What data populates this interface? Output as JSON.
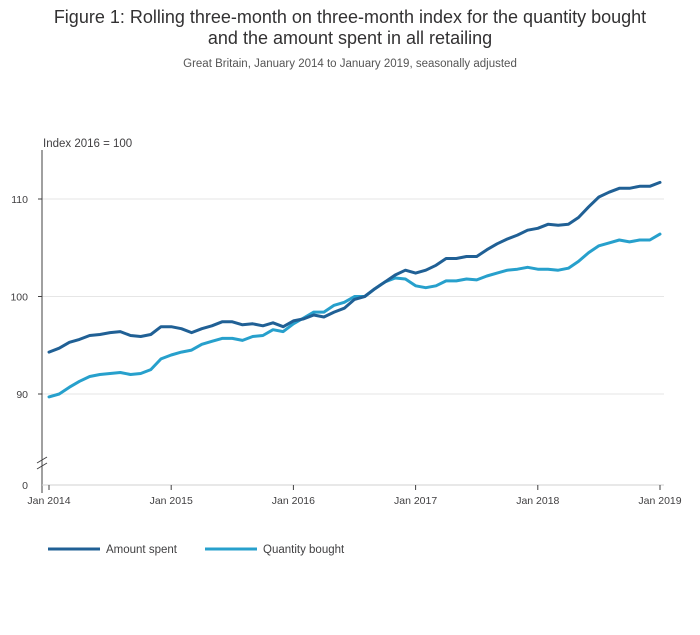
{
  "chart_data": {
    "type": "line",
    "title_lines": [
      "Figure 1: Rolling three-month on three-month index for the quantity bought",
      "and the amount spent in all retailing"
    ],
    "subtitle": "Great Britain, January 2014 to January 2019, seasonally adjusted",
    "ylabel": "Index 2016 = 100",
    "ylim": [
      85,
      115
    ],
    "yaxis_zero_label": "0",
    "yticks": [
      {
        "value": 90,
        "label": "90"
      },
      {
        "value": 100,
        "label": "100"
      },
      {
        "value": 110,
        "label": "110"
      }
    ],
    "xticks": [
      {
        "index": 0,
        "label": "Jan 2014"
      },
      {
        "index": 12,
        "label": "Jan 2015"
      },
      {
        "index": 24,
        "label": "Jan 2016"
      },
      {
        "index": 36,
        "label": "Jan 2017"
      },
      {
        "index": 48,
        "label": "Jan 2018"
      },
      {
        "index": 60,
        "label": "Jan 2019"
      }
    ],
    "x_start": "Jan 2014",
    "x_count": 61,
    "series": [
      {
        "name": "Amount spent",
        "color": "#206095",
        "values": [
          94.3,
          94.7,
          95.3,
          95.6,
          96.0,
          96.1,
          96.3,
          96.4,
          96.0,
          95.9,
          96.1,
          96.9,
          96.9,
          96.7,
          96.3,
          96.7,
          97.0,
          97.4,
          97.4,
          97.1,
          97.2,
          97.0,
          97.3,
          96.9,
          97.5,
          97.7,
          98.1,
          97.9,
          98.4,
          98.8,
          99.7,
          100.0,
          100.8,
          101.5,
          102.2,
          102.7,
          102.4,
          102.7,
          103.2,
          103.9,
          103.9,
          104.1,
          104.1,
          104.8,
          105.4,
          105.9,
          106.3,
          106.8,
          107.0,
          107.4,
          107.3,
          107.4,
          108.1,
          109.2,
          110.2,
          110.7,
          111.1,
          111.1,
          111.3,
          111.3,
          111.7
        ]
      },
      {
        "name": "Quantity bought",
        "color": "#27a0cc",
        "values": [
          89.7,
          90.0,
          90.7,
          91.3,
          91.8,
          92.0,
          92.1,
          92.2,
          92.0,
          92.1,
          92.5,
          93.6,
          94.0,
          94.3,
          94.5,
          95.1,
          95.4,
          95.7,
          95.7,
          95.5,
          95.9,
          96.0,
          96.6,
          96.4,
          97.2,
          97.8,
          98.4,
          98.4,
          99.1,
          99.4,
          100.0,
          100.0,
          100.8,
          101.5,
          101.9,
          101.8,
          101.1,
          100.9,
          101.1,
          101.6,
          101.6,
          101.8,
          101.7,
          102.1,
          102.4,
          102.7,
          102.8,
          103.0,
          102.8,
          102.8,
          102.7,
          102.9,
          103.6,
          104.5,
          105.2,
          105.5,
          105.8,
          105.6,
          105.8,
          105.8,
          106.4
        ]
      }
    ]
  }
}
